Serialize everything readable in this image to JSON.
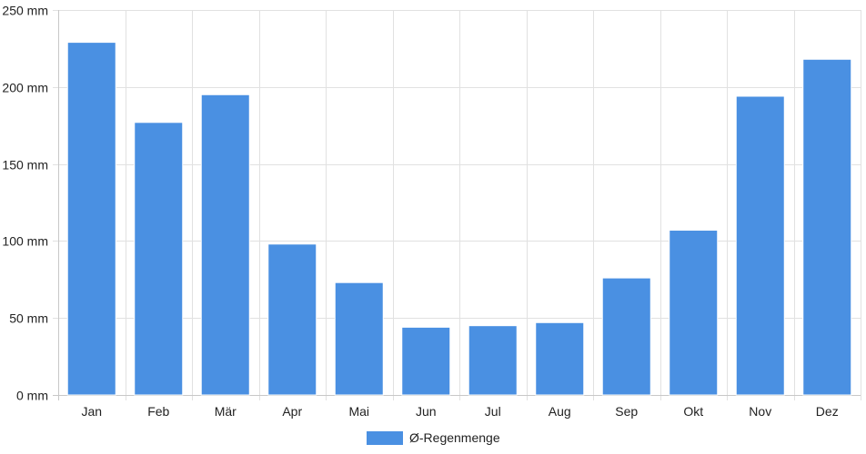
{
  "chart_data": {
    "type": "bar",
    "categories": [
      "Jan",
      "Feb",
      "Mär",
      "Apr",
      "Mai",
      "Jun",
      "Jul",
      "Aug",
      "Sep",
      "Okt",
      "Nov",
      "Dez"
    ],
    "series": [
      {
        "name": "Ø-Regenmenge",
        "values": [
          229,
          177,
          195,
          98,
          73,
          44,
          45,
          47,
          76,
          107,
          194,
          218
        ],
        "color": "#4a90e2"
      }
    ],
    "y_tick_labels": [
      "0 mm",
      "50 mm",
      "100 mm",
      "150 mm",
      "200 mm",
      "250 mm"
    ],
    "y_ticks": [
      0,
      50,
      100,
      150,
      200,
      250
    ],
    "ylim": [
      0,
      250
    ],
    "grid": true,
    "legend_position": "bottom-center"
  }
}
